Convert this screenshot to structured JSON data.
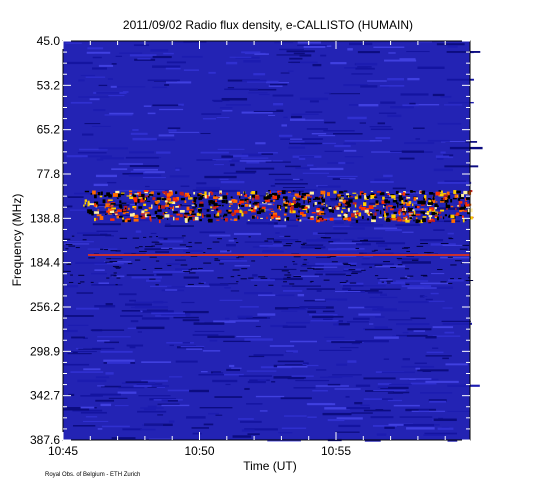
{
  "chart_data": {
    "type": "spectrogram",
    "title": "2011/09/02  Radio flux density, e-CALLISTO (HUMAIN)",
    "x_label": "Time (UT)",
    "y_label": "Frequency (MHz)",
    "x_tick_labels": [
      "10:45",
      "10:50",
      "10:55"
    ],
    "y_tick_labels": [
      "45.0",
      "53.2",
      "65.2",
      "77.8",
      "138.8",
      "184.4",
      "256.2",
      "298.9",
      "342.7",
      "387.6"
    ],
    "credit": "Royal Obs. of Belgium - ETH Zurich",
    "color": "#2323b4"
  }
}
